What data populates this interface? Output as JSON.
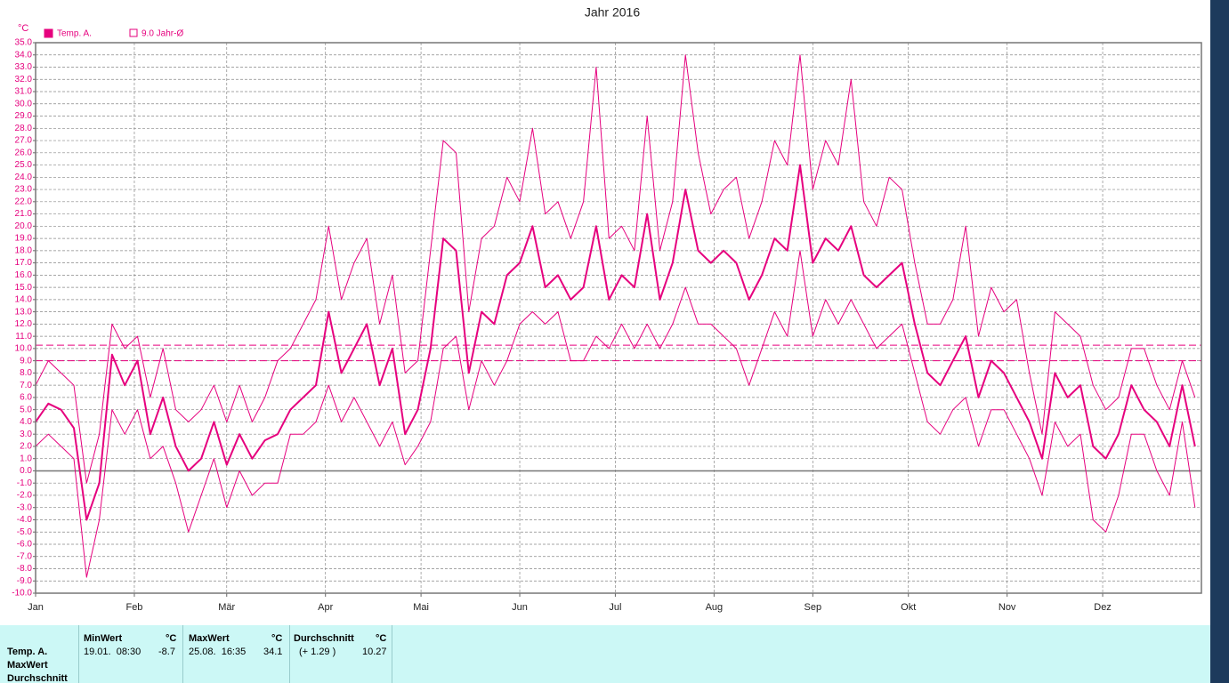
{
  "chart_data": {
    "type": "line",
    "title": "Jahr 2016",
    "y_unit": "°C",
    "x": [
      1,
      5,
      9,
      13,
      17,
      21,
      25,
      29,
      33,
      37,
      41,
      45,
      49,
      53,
      57,
      61,
      65,
      69,
      73,
      77,
      81,
      85,
      89,
      93,
      97,
      101,
      105,
      109,
      113,
      117,
      121,
      125,
      129,
      133,
      137,
      141,
      145,
      149,
      153,
      157,
      161,
      165,
      169,
      173,
      177,
      181,
      185,
      189,
      193,
      197,
      201,
      205,
      209,
      213,
      217,
      221,
      225,
      229,
      233,
      237,
      241,
      245,
      249,
      253,
      257,
      261,
      265,
      269,
      273,
      277,
      281,
      285,
      289,
      293,
      297,
      301,
      305,
      309,
      313,
      317,
      321,
      325,
      329,
      333,
      337,
      341,
      345,
      349,
      353,
      357,
      361,
      365
    ],
    "series": [
      {
        "name": "Temp. A.",
        "color": "#e6007e",
        "width": 2,
        "values": [
          4,
          5.5,
          5,
          3.5,
          -4,
          -1,
          9.5,
          7,
          9,
          3,
          6,
          2,
          0,
          1,
          4,
          0.5,
          3,
          1,
          2.5,
          3,
          5,
          6,
          7,
          13,
          8,
          10,
          12,
          7,
          10,
          3,
          5,
          10,
          19,
          18,
          8,
          13,
          12,
          16,
          17,
          20,
          15,
          16,
          14,
          15,
          20,
          14,
          16,
          15,
          21,
          14,
          17,
          23,
          18,
          17,
          18,
          17,
          14,
          16,
          19,
          18,
          25,
          17,
          19,
          18,
          20,
          16,
          15,
          16,
          17,
          12,
          8,
          7,
          9,
          11,
          6,
          9,
          8,
          6,
          4,
          1,
          8,
          6,
          7,
          2,
          1,
          3,
          7,
          5,
          4,
          2,
          7,
          2
        ]
      },
      {
        "color": "#e6007e",
        "width": 1,
        "values": [
          7,
          9,
          8,
          7,
          -1,
          3,
          12,
          10,
          11,
          6,
          10,
          5,
          4,
          5,
          7,
          4,
          7,
          4,
          6,
          9,
          10,
          12,
          14,
          20,
          14,
          17,
          19,
          12,
          16,
          8,
          9,
          18,
          27,
          26,
          13,
          19,
          20,
          24,
          22,
          28,
          21,
          22,
          19,
          22,
          33,
          19,
          20,
          18,
          29,
          18,
          22,
          34,
          26,
          21,
          23,
          24,
          19,
          22,
          27,
          25,
          34,
          23,
          27,
          25,
          32,
          22,
          20,
          24,
          23,
          17,
          12,
          12,
          14,
          20,
          11,
          15,
          13,
          14,
          8,
          3,
          13,
          12,
          11,
          7,
          5,
          6,
          10,
          10,
          7,
          5,
          9,
          6
        ]
      },
      {
        "color": "#e6007e",
        "width": 1,
        "values": [
          2,
          3,
          2,
          1,
          -8.7,
          -4,
          5,
          3,
          5,
          1,
          2,
          -1,
          -5,
          -2,
          1,
          -3,
          0,
          -2,
          -1,
          -1,
          3,
          3,
          4,
          7,
          4,
          6,
          4,
          2,
          4,
          0.5,
          2,
          4,
          10,
          11,
          5,
          9,
          7,
          9,
          12,
          13,
          12,
          13,
          9,
          9,
          11,
          10,
          12,
          10,
          12,
          10,
          12,
          15,
          12,
          12,
          11,
          10,
          7,
          10,
          13,
          11,
          18,
          11,
          14,
          12,
          14,
          12,
          10,
          11,
          12,
          8,
          4,
          3,
          5,
          6,
          2,
          5,
          5,
          3,
          1,
          -2,
          4,
          2,
          3,
          -4,
          -5,
          -2,
          3,
          3,
          0,
          -2,
          4,
          -3
        ]
      }
    ],
    "reference_lines": [
      {
        "name": "9.0 Jahr-Ø",
        "value": 9.0,
        "color": "#e6007e"
      },
      {
        "value": 10.27,
        "color": "#e6007e"
      }
    ],
    "xlim": [
      1,
      367
    ],
    "xticks": [
      {
        "value": 1,
        "label": "Jan"
      },
      {
        "value": 32,
        "label": "Feb"
      },
      {
        "value": 61,
        "label": "Mär"
      },
      {
        "value": 92,
        "label": "Apr"
      },
      {
        "value": 122,
        "label": "Mai"
      },
      {
        "value": 153,
        "label": "Jun"
      },
      {
        "value": 183,
        "label": "Jul"
      },
      {
        "value": 214,
        "label": "Aug"
      },
      {
        "value": 245,
        "label": "Sep"
      },
      {
        "value": 275,
        "label": "Okt"
      },
      {
        "value": 306,
        "label": "Nov"
      },
      {
        "value": 336,
        "label": "Dez"
      }
    ],
    "ylim": [
      -10,
      35
    ],
    "yticks": [
      {
        "value": 35,
        "label": "35.0"
      },
      {
        "value": 34,
        "label": "34.0"
      },
      {
        "value": 33,
        "label": "33.0"
      },
      {
        "value": 32,
        "label": "32.0"
      },
      {
        "value": 31,
        "label": "31.0"
      },
      {
        "value": 30,
        "label": "30.0"
      },
      {
        "value": 29,
        "label": "29.0"
      },
      {
        "value": 28,
        "label": "28.0"
      },
      {
        "value": 27,
        "label": "27.0"
      },
      {
        "value": 26,
        "label": "26.0"
      },
      {
        "value": 25,
        "label": "25.0"
      },
      {
        "value": 24,
        "label": "24.0"
      },
      {
        "value": 23,
        "label": "23.0"
      },
      {
        "value": 22,
        "label": "22.0"
      },
      {
        "value": 21,
        "label": "21.0"
      },
      {
        "value": 20,
        "label": "20.0"
      },
      {
        "value": 19,
        "label": "19.0"
      },
      {
        "value": 18,
        "label": "18.0"
      },
      {
        "value": 17,
        "label": "17.0"
      },
      {
        "value": 16,
        "label": "16.0"
      },
      {
        "value": 15,
        "label": "15.0"
      },
      {
        "value": 14,
        "label": "14.0"
      },
      {
        "value": 13,
        "label": "13.0"
      },
      {
        "value": 12,
        "label": "12.0"
      },
      {
        "value": 11,
        "label": "11.0"
      },
      {
        "value": 10,
        "label": "10.0"
      },
      {
        "value": 9,
        "label": "9.0"
      },
      {
        "value": 8,
        "label": "8.0"
      },
      {
        "value": 7,
        "label": "7.0"
      },
      {
        "value": 6,
        "label": "6.0"
      },
      {
        "value": 5,
        "label": "5.0"
      },
      {
        "value": 4,
        "label": "4.0"
      },
      {
        "value": 3,
        "label": "3.0"
      },
      {
        "value": 2,
        "label": "2.0"
      },
      {
        "value": 1,
        "label": "1.0"
      },
      {
        "value": 0,
        "label": "0.0"
      },
      {
        "value": -1,
        "label": "-1.0"
      },
      {
        "value": -2,
        "label": "-2.0"
      },
      {
        "value": -3,
        "label": "-3.0"
      },
      {
        "value": -4,
        "label": "-4.0"
      },
      {
        "value": -5,
        "label": "-5.0"
      },
      {
        "value": -6,
        "label": "-6.0"
      },
      {
        "value": -7,
        "label": "-7.0"
      },
      {
        "value": -8,
        "label": "-8.0"
      },
      {
        "value": -9,
        "label": "-9.0"
      },
      {
        "value": -10,
        "label": "-10.0"
      }
    ],
    "grid": true,
    "zero_line": true
  },
  "stats_table": {
    "row_labels": [
      "Temp. A.",
      "MaxWert",
      "Durchschnitt"
    ],
    "headers": [
      [
        "MinWert",
        "°C"
      ],
      [
        "MaxWert",
        "°C"
      ],
      [
        "Durchschnitt",
        "°C"
      ]
    ],
    "cells": [
      [
        "19.01.  08:30",
        "-8.7"
      ],
      [
        "25.08.  16:35",
        "34.1"
      ],
      [
        "(+ 1.29 )",
        "10.27"
      ]
    ]
  }
}
